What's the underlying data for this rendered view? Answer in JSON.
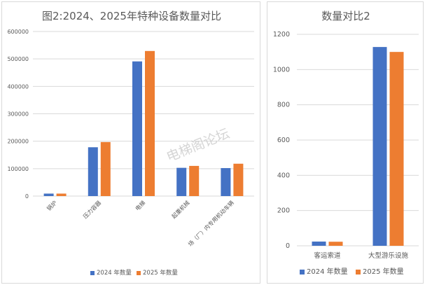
{
  "chart_data": [
    {
      "type": "bar",
      "title": "图2:2024、2025年特种设备数量对比",
      "categories": [
        "锅炉",
        "压力容器",
        "电梯",
        "起重机械",
        "场（厂）内专用机动车辆"
      ],
      "series": [
        {
          "name": "2024 年数量",
          "values": [
            9000,
            178000,
            491000,
            103000,
            102000
          ]
        },
        {
          "name": "2025 年数量",
          "values": [
            9000,
            197000,
            529000,
            110000,
            118000
          ]
        }
      ],
      "ylim": [
        0,
        600000
      ],
      "yticks": [
        0,
        100000,
        200000,
        300000,
        400000,
        500000,
        600000
      ],
      "grid": true,
      "legend": "bottom"
    },
    {
      "type": "bar",
      "title": "数量对比2",
      "categories": [
        "客运索道",
        "大型游乐设施"
      ],
      "series": [
        {
          "name": "2024 年数量",
          "values": [
            24,
            1128
          ]
        },
        {
          "name": "2025 年数量",
          "values": [
            23,
            1100
          ]
        }
      ],
      "ylim": [
        0,
        1200
      ],
      "yticks": [
        0,
        200,
        400,
        600,
        800,
        1000,
        1200
      ],
      "grid": true,
      "legend": "bottom"
    }
  ],
  "colors": {
    "series_2024": "#4472c4",
    "series_2025": "#ed7d31"
  },
  "watermark": "电梯阁论坛"
}
